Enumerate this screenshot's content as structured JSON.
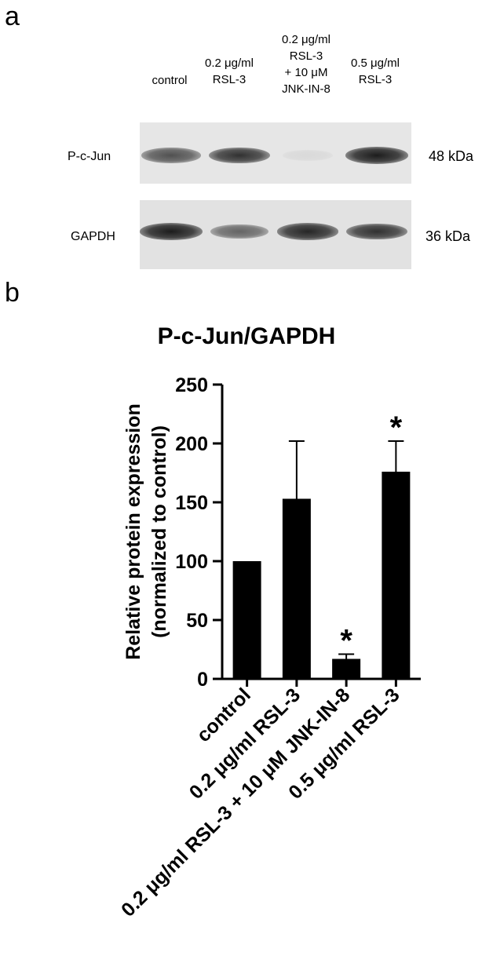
{
  "panels": {
    "a": "a",
    "b": "b"
  },
  "blot": {
    "lanes": [
      "control",
      "0.2 μg/ml\nRSL-3",
      "0.2 μg/ml\nRSL-3\n+ 10 μM\nJNK-IN-8",
      "0.5 μg/ml\nRSL-3"
    ],
    "rows": [
      {
        "name": "P-c-Jun",
        "kda": "48 kDa",
        "band_intensity": [
          0.7,
          0.85,
          0.05,
          0.95
        ]
      },
      {
        "name": "GAPDH",
        "kda": "36 kDa",
        "band_intensity": [
          0.95,
          0.6,
          0.9,
          0.85
        ]
      }
    ]
  },
  "colors": {
    "bars": "#000000",
    "blot_background": "#e4e4e4",
    "band": "#111111"
  },
  "chart_data": {
    "type": "bar",
    "title": "P-c-Jun/GAPDH",
    "ylabel": "Relative protein expression\n(normalized to control)",
    "xlabel": "",
    "categories": [
      "control",
      "0.2 μg/ml RSL-3",
      "0.2 μg/ml RSL-3 + 10 μM JNK-IN-8",
      "0.5 μg/ml RSL-3"
    ],
    "values": [
      100,
      153,
      17,
      176
    ],
    "error": [
      0,
      49,
      4,
      26
    ],
    "significance": [
      "",
      "",
      "*",
      "*"
    ],
    "ylim": [
      0,
      250
    ],
    "yticks": [
      "0",
      "50",
      "100",
      "150",
      "200",
      "250"
    ],
    "grid": false,
    "legend": "none"
  }
}
